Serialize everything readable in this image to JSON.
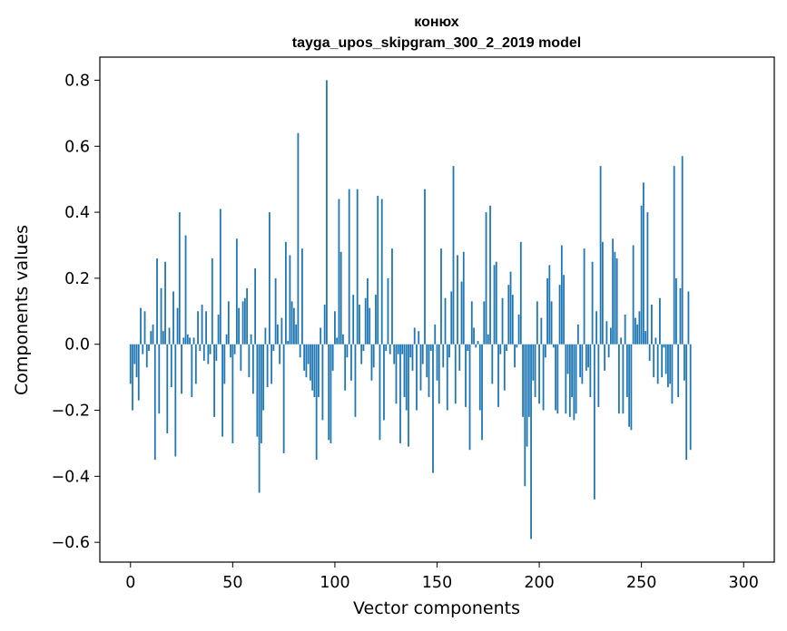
{
  "chart_data": {
    "type": "bar",
    "title": "конюх",
    "subtitle": "tayga_upos_skipgram_300_2_2019 model",
    "xlabel": "Vector components",
    "ylabel": "Components values",
    "xlim": [
      -15,
      315
    ],
    "ylim": [
      -0.66,
      0.87
    ],
    "xticks": [
      0,
      50,
      100,
      150,
      200,
      250,
      300
    ],
    "yticks": [
      -0.6,
      -0.4,
      -0.2,
      0.0,
      0.2,
      0.4,
      0.6,
      0.8
    ],
    "xtick_labels": [
      "0",
      "50",
      "100",
      "150",
      "200",
      "250",
      "300"
    ],
    "ytick_labels": [
      "−0.6",
      "−0.4",
      "−0.2",
      "0.0",
      "0.2",
      "0.4",
      "0.6",
      "0.8"
    ],
    "grid": false,
    "series": [
      {
        "color": "#1f77b4",
        "x_start": 0,
        "values": [
          -0.12,
          -0.2,
          -0.06,
          -0.1,
          -0.17,
          0.11,
          -0.03,
          0.1,
          -0.07,
          -0.02,
          0.04,
          0.06,
          -0.35,
          0.26,
          -0.21,
          0.17,
          0.04,
          0.25,
          -0.27,
          0.05,
          -0.13,
          0.16,
          -0.34,
          0.11,
          0.4,
          -0.15,
          0.02,
          0.33,
          0.03,
          0.02,
          -0.16,
          0.02,
          -0.12,
          0.1,
          -0.02,
          0.12,
          -0.05,
          0.1,
          -0.06,
          -0.03,
          0.26,
          -0.22,
          -0.05,
          0.09,
          0.41,
          -0.28,
          -0.12,
          0.03,
          0.13,
          -0.04,
          -0.3,
          -0.03,
          0.32,
          0.11,
          -0.08,
          0.13,
          0.14,
          0.17,
          -0.1,
          0.03,
          -0.15,
          0.23,
          -0.28,
          -0.45,
          -0.3,
          -0.2,
          0.05,
          -0.13,
          0.4,
          -0.12,
          -0.02,
          0.2,
          0.06,
          -0.06,
          0.08,
          -0.33,
          0.31,
          0.01,
          0.27,
          0.13,
          0.11,
          0.06,
          0.64,
          -0.04,
          0.29,
          -0.08,
          -0.1,
          -0.06,
          -0.11,
          -0.14,
          -0.16,
          -0.35,
          -0.16,
          0.05,
          -0.23,
          0.12,
          0.8,
          -0.29,
          -0.3,
          -0.08,
          0.1,
          0.02,
          0.44,
          0.28,
          0.03,
          -0.14,
          -0.04,
          0.47,
          -0.11,
          0.15,
          -0.22,
          0.47,
          0.12,
          -0.06,
          -0.02,
          0.14,
          0.2,
          0.11,
          -0.11,
          -0.07,
          0.15,
          0.45,
          -0.29,
          0.44,
          -0.23,
          -0.02,
          0.2,
          -0.03,
          0.29,
          -0.06,
          -0.18,
          -0.03,
          -0.3,
          -0.03,
          -0.16,
          -0.2,
          -0.31,
          -0.04,
          -0.08,
          0.05,
          -0.2,
          0.04,
          -0.14,
          -0.06,
          0.47,
          -0.1,
          -0.16,
          -0.02,
          -0.39,
          0.06,
          -0.11,
          -0.18,
          0.29,
          -0.07,
          0.14,
          -0.2,
          -0.04,
          0.16,
          0.54,
          -0.18,
          0.27,
          -0.08,
          0.19,
          0.28,
          -0.19,
          -0.02,
          -0.32,
          0.13,
          0.05,
          -0.01,
          0.01,
          -0.2,
          -0.29,
          0.13,
          0.4,
          0.03,
          0.42,
          -0.12,
          0.24,
          0.25,
          -0.19,
          -0.03,
          0.14,
          -0.14,
          -0.02,
          0.18,
          0.22,
          0.15,
          -0.07,
          -0.01,
          0.09,
          0.31,
          -0.22,
          -0.43,
          -0.31,
          -0.22,
          -0.59,
          -0.11,
          -0.16,
          0.13,
          -0.18,
          0.08,
          -0.2,
          -0.04,
          0.2,
          0.24,
          0.13,
          -0.01,
          -0.2,
          -0.21,
          0.18,
          0.3,
          0.21,
          -0.21,
          -0.09,
          -0.22,
          -0.16,
          -0.23,
          -0.21,
          0.06,
          -0.1,
          -0.12,
          0.29,
          -0.08,
          -0.07,
          -0.16,
          0.25,
          -0.47,
          0.1,
          -0.19,
          0.54,
          0.31,
          -0.08,
          0.07,
          -0.04,
          0.05,
          0.32,
          0.28,
          0.26,
          -0.21,
          0.02,
          -0.21,
          0.09,
          -0.16,
          -0.25,
          -0.26,
          0.3,
          0.08,
          0.06,
          0.1,
          0.42,
          0.49,
          0.04,
          0.4,
          -0.05,
          0.12,
          -0.1,
          0.02,
          -0.12,
          0.14,
          -0.1,
          -0.01,
          -0.09,
          -0.13,
          -0.12,
          -0.18,
          0.54,
          0.2,
          -0.16,
          0.17,
          0.57,
          -0.11,
          -0.35,
          0.16,
          -0.32
        ]
      }
    ]
  }
}
